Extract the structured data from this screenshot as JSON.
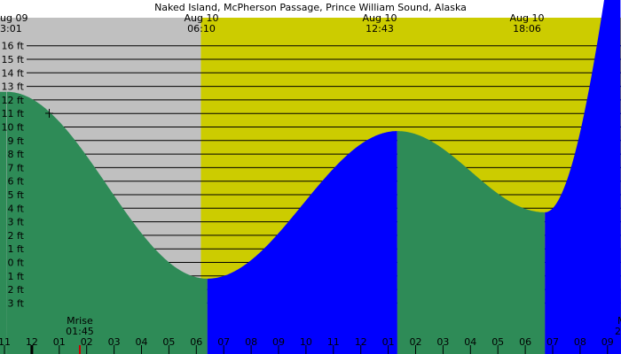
{
  "title": "Naked Island, McPherson Passage, Prince William Sound, Alaska",
  "colors": {
    "night": "#c0c0c0",
    "day": "#cccc00",
    "falling_tide": "#2e8b57",
    "rising_tide": "#0000ff",
    "grid": "#000000",
    "text": "#000000",
    "moon_marker": "#cc0000"
  },
  "header_labels": [
    {
      "date": "ug 09",
      "time": "3:01"
    },
    {
      "date": "Aug 10",
      "time": "06:10"
    },
    {
      "date": "Aug 10",
      "time": "12:43"
    },
    {
      "date": "Aug 10",
      "time": "18:06"
    }
  ],
  "moon_labels": [
    {
      "name": "Mrise",
      "time": "01:45"
    },
    {
      "name": "M",
      "time": "2"
    }
  ],
  "chart_data": {
    "type": "area",
    "title": "Naked Island, McPherson Passage, Prince William Sound, Alaska",
    "y_unit": "ft",
    "ylim": [
      -4,
      17
    ],
    "xlim": [
      "Aug 09 23:00",
      "Aug 10 20:00"
    ],
    "y_tick_labels": [
      "16 ft",
      "15 ft",
      "14 ft",
      "13 ft",
      "12 ft",
      "11 ft",
      "10 ft",
      "9 ft",
      "8 ft",
      "7 ft",
      "6 ft",
      "5 ft",
      "4 ft",
      "3 ft",
      "2 ft",
      "1 ft",
      "0 ft",
      "1 ft",
      "2 ft",
      "3 ft"
    ],
    "y_tick_values": [
      16,
      15,
      14,
      13,
      12,
      11,
      10,
      9,
      8,
      7,
      6,
      5,
      4,
      3,
      2,
      1,
      0,
      -1,
      -2,
      -3
    ],
    "x_tick_labels": [
      "11",
      "12",
      "01",
      "02",
      "03",
      "04",
      "05",
      "06",
      "07",
      "08",
      "09",
      "10",
      "11",
      "12",
      "01",
      "02",
      "03",
      "04",
      "05",
      "06",
      "07",
      "08",
      "09"
    ],
    "tide_extremes": [
      {
        "time": "Aug 09 23:05",
        "type": "high",
        "height_ft": 12.6
      },
      {
        "time": "Aug 10 06:24",
        "type": "low",
        "height_ft": -1.2
      },
      {
        "time": "Aug 10 13:20",
        "type": "high",
        "height_ft": 9.7
      },
      {
        "time": "Aug 10 18:43",
        "type": "low",
        "height_ft": 3.7
      }
    ],
    "tide_end": {
      "time": "Aug 10 20:00",
      "height_ft": 9.6
    },
    "daylight": {
      "sunrise": "Aug 10 06:10",
      "sunset": "Aug 10 20:00"
    },
    "grid": true
  }
}
